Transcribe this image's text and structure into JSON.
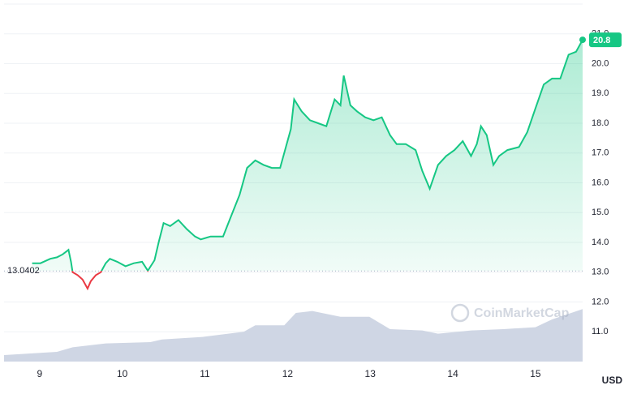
{
  "chart_data": {
    "type": "line",
    "x": [
      8.91,
      9.01,
      9.13,
      9.21,
      9.28,
      9.35,
      9.38,
      9.4,
      9.46,
      9.52,
      9.58,
      9.62,
      9.68,
      9.74,
      9.8,
      9.85,
      9.94,
      10.04,
      10.14,
      10.24,
      10.31,
      10.39,
      10.44,
      10.5,
      10.58,
      10.68,
      10.78,
      10.88,
      10.95,
      11.07,
      11.22,
      11.32,
      11.42,
      11.51,
      11.61,
      11.71,
      11.81,
      11.91,
      11.98,
      12.04,
      12.08,
      12.17,
      12.27,
      12.37,
      12.47,
      12.57,
      12.64,
      12.68,
      12.76,
      12.84,
      12.94,
      13.04,
      13.14,
      13.24,
      13.32,
      13.43,
      13.55,
      13.63,
      13.72,
      13.82,
      13.92,
      14.02,
      14.12,
      14.22,
      14.29,
      14.34,
      14.41,
      14.49,
      14.56,
      14.66,
      14.8,
      14.9,
      15.0,
      15.1,
      15.2,
      15.3,
      15.4,
      15.49,
      15.57
    ],
    "values": [
      13.3,
      13.3,
      13.45,
      13.5,
      13.6,
      13.75,
      13.35,
      13.0,
      12.9,
      12.75,
      12.45,
      12.7,
      12.9,
      13.0,
      13.3,
      13.45,
      13.35,
      13.2,
      13.3,
      13.35,
      13.05,
      13.4,
      14.0,
      14.65,
      14.55,
      14.75,
      14.45,
      14.2,
      14.1,
      14.2,
      14.2,
      14.9,
      15.6,
      16.5,
      16.75,
      16.6,
      16.5,
      16.5,
      17.2,
      17.8,
      18.8,
      18.4,
      18.1,
      18.0,
      17.9,
      18.8,
      18.6,
      19.6,
      18.6,
      18.4,
      18.2,
      18.1,
      18.2,
      17.6,
      17.3,
      17.3,
      17.1,
      16.4,
      15.8,
      16.6,
      16.9,
      17.1,
      17.4,
      16.9,
      17.3,
      17.9,
      17.6,
      16.6,
      16.9,
      17.1,
      17.2,
      17.7,
      18.5,
      19.3,
      19.5,
      19.5,
      20.3,
      20.4,
      20.8
    ],
    "color": "#16c784",
    "down_color": "#ea3943",
    "baseline": 13.0402,
    "xlim": [
      8.57,
      15.57
    ],
    "xticks": [
      9,
      10,
      11,
      12,
      13,
      14,
      15
    ],
    "ylim": [
      10,
      22
    ],
    "yticks": [
      {
        "value": 11,
        "label": "11.0"
      },
      {
        "value": 12,
        "label": "12.0"
      },
      {
        "value": 13,
        "label": "13.0"
      },
      {
        "value": 14,
        "label": "14.0"
      },
      {
        "value": 15,
        "label": "15.0"
      },
      {
        "value": 16,
        "label": "16.0"
      },
      {
        "value": 17,
        "label": "17.0"
      },
      {
        "value": 18,
        "label": "18.0"
      },
      {
        "value": 19,
        "label": "19.0"
      },
      {
        "value": 20,
        "label": "20.0"
      },
      {
        "value": 21,
        "label": "21.0"
      }
    ],
    "grid": true,
    "volume": {
      "x": [
        8.57,
        9.21,
        9.4,
        9.8,
        10.34,
        10.48,
        10.97,
        11.47,
        11.61,
        11.96,
        12.1,
        12.3,
        12.64,
        12.99,
        13.24,
        13.63,
        13.82,
        14.22,
        14.61,
        15.0,
        15.2,
        15.57
      ],
      "values": [
        10,
        15,
        22,
        28,
        30,
        34,
        38,
        46,
        56,
        56,
        75,
        78,
        69,
        69,
        50,
        48,
        43,
        48,
        50,
        53,
        65,
        81
      ],
      "ylim": [
        0,
        100
      ],
      "color": "#cfd6e4"
    },
    "watermark": "CoinMarketCap",
    "currency": "USD"
  }
}
